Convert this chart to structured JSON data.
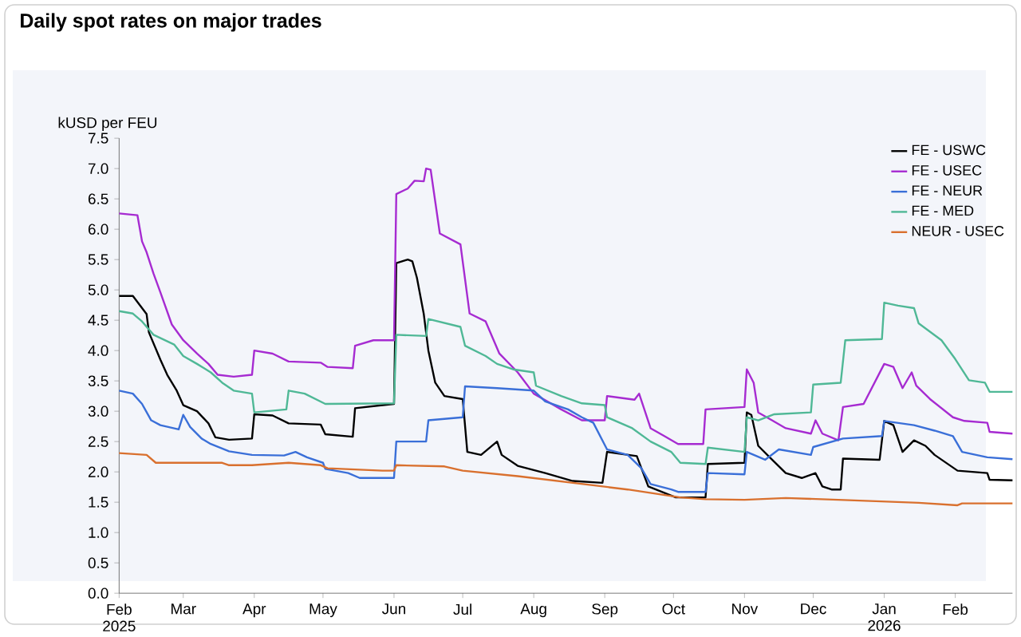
{
  "chart_data": {
    "type": "line",
    "title": "Daily spot rates on major trades",
    "ylabel": "kUSD per FEU",
    "xlim": [
      "2025-02-01",
      "2026-02-26"
    ],
    "ylim": [
      0,
      7.5
    ],
    "xticks": [
      {
        "value": "2025-02-01",
        "label": "Feb 2025"
      },
      {
        "value": "2025-03-01",
        "label": "Mar"
      },
      {
        "value": "2025-04-01",
        "label": "Apr"
      },
      {
        "value": "2025-05-01",
        "label": "May"
      },
      {
        "value": "2025-06-01",
        "label": "Jun"
      },
      {
        "value": "2025-07-01",
        "label": "Jul"
      },
      {
        "value": "2025-08-01",
        "label": "Aug"
      },
      {
        "value": "2025-09-01",
        "label": "Sep"
      },
      {
        "value": "2025-10-01",
        "label": "Oct"
      },
      {
        "value": "2025-11-01",
        "label": "Nov"
      },
      {
        "value": "2025-12-01",
        "label": "Dec"
      },
      {
        "value": "2026-01-01",
        "label": "Jan 2026"
      },
      {
        "value": "2026-02-01",
        "label": "Feb"
      }
    ],
    "yticks": [
      {
        "value": 0,
        "label": "0.0"
      },
      0.5,
      {
        "value": 1,
        "label": "1.0"
      },
      1.5,
      {
        "value": 2,
        "label": "2.0"
      },
      2.5,
      {
        "value": 3,
        "label": "3.0"
      },
      3.5,
      {
        "value": 4,
        "label": "4.0"
      },
      4.5,
      {
        "value": 5,
        "label": "5.0"
      },
      5.5,
      {
        "value": 6,
        "label": "6.0"
      },
      6.5,
      {
        "value": 7,
        "label": "7.0"
      },
      7.5
    ],
    "grid": false,
    "legend": "top right",
    "series": [
      {
        "name": "FE - USWC",
        "color": "#000000",
        "x": [
          "2025-02-01",
          "2025-02-07",
          "2025-02-10",
          "2025-02-13",
          "2025-02-14",
          "2025-02-19",
          "2025-02-22",
          "2025-02-26",
          "2025-03-01",
          "2025-03-07",
          "2025-03-12",
          "2025-03-15",
          "2025-03-21",
          "2025-03-31",
          "2025-04-01",
          "2025-04-09",
          "2025-04-16",
          "2025-04-30",
          "2025-05-02",
          "2025-05-14",
          "2025-05-15",
          "2025-06-01",
          "2025-06-02",
          "2025-06-07",
          "2025-06-09",
          "2025-06-11",
          "2025-06-14",
          "2025-06-16",
          "2025-06-19",
          "2025-06-23",
          "2025-07-01",
          "2025-07-03",
          "2025-07-09",
          "2025-07-16",
          "2025-07-18",
          "2025-07-25",
          "2025-08-06",
          "2025-08-18",
          "2025-08-31",
          "2025-09-02",
          "2025-09-15",
          "2025-09-20",
          "2025-10-02",
          "2025-10-15",
          "2025-10-16",
          "2025-11-01",
          "2025-11-02",
          "2025-11-04",
          "2025-11-07",
          "2025-11-12",
          "2025-11-19",
          "2025-11-26",
          "2025-12-02",
          "2025-12-05",
          "2025-12-09",
          "2025-12-13",
          "2025-12-14",
          "2025-12-30",
          "2026-01-01",
          "2026-01-05",
          "2026-01-09",
          "2026-01-14",
          "2026-01-19",
          "2026-01-23",
          "2026-02-02",
          "2026-02-15",
          "2026-02-16",
          "2026-02-26"
        ],
        "values": [
          4.9,
          4.9,
          4.75,
          4.6,
          4.3,
          3.85,
          3.6,
          3.35,
          3.1,
          3.0,
          2.8,
          2.57,
          2.53,
          2.55,
          2.95,
          2.93,
          2.8,
          2.78,
          2.62,
          2.58,
          3.05,
          3.12,
          5.44,
          5.5,
          5.47,
          5.2,
          4.6,
          4.0,
          3.47,
          3.25,
          3.2,
          2.33,
          2.28,
          2.5,
          2.28,
          2.1,
          1.98,
          1.85,
          1.82,
          2.33,
          2.26,
          1.76,
          1.58,
          1.58,
          2.13,
          2.15,
          2.98,
          2.94,
          2.43,
          2.24,
          1.98,
          1.9,
          1.98,
          1.76,
          1.71,
          1.71,
          2.22,
          2.2,
          2.84,
          2.77,
          2.33,
          2.52,
          2.43,
          2.28,
          2.02,
          1.98,
          1.87,
          1.86
        ]
      },
      {
        "name": "FE - USEC",
        "color": "#a62bd1",
        "x": [
          "2025-02-01",
          "2025-02-09",
          "2025-02-11",
          "2025-02-13",
          "2025-02-16",
          "2025-02-19",
          "2025-02-24",
          "2025-03-01",
          "2025-03-07",
          "2025-03-12",
          "2025-03-16",
          "2025-03-23",
          "2025-03-31",
          "2025-04-01",
          "2025-04-09",
          "2025-04-16",
          "2025-04-30",
          "2025-05-03",
          "2025-05-14",
          "2025-05-15",
          "2025-05-23",
          "2025-06-01",
          "2025-06-02",
          "2025-06-07",
          "2025-06-10",
          "2025-06-14",
          "2025-06-15",
          "2025-06-17",
          "2025-06-21",
          "2025-06-30",
          "2025-07-04",
          "2025-07-11",
          "2025-07-17",
          "2025-07-25",
          "2025-08-01",
          "2025-08-13",
          "2025-08-22",
          "2025-09-01",
          "2025-09-02",
          "2025-09-14",
          "2025-09-16",
          "2025-09-21",
          "2025-09-27",
          "2025-10-03",
          "2025-10-14",
          "2025-10-15",
          "2025-11-01",
          "2025-11-02",
          "2025-11-05",
          "2025-11-07",
          "2025-11-13",
          "2025-11-19",
          "2025-11-30",
          "2025-12-02",
          "2025-12-05",
          "2025-12-12",
          "2025-12-14",
          "2025-12-23",
          "2026-01-01",
          "2026-01-05",
          "2026-01-09",
          "2026-01-13",
          "2026-01-15",
          "2026-01-21",
          "2026-01-31",
          "2026-02-05",
          "2026-02-15",
          "2026-02-16",
          "2026-02-26"
        ],
        "values": [
          6.26,
          6.23,
          5.8,
          5.62,
          5.27,
          4.96,
          4.43,
          4.17,
          3.95,
          3.78,
          3.6,
          3.57,
          3.6,
          4.0,
          3.95,
          3.82,
          3.8,
          3.73,
          3.71,
          4.08,
          4.17,
          4.17,
          6.58,
          6.67,
          6.8,
          6.79,
          7.0,
          6.98,
          5.93,
          5.75,
          4.61,
          4.48,
          3.95,
          3.64,
          3.29,
          3.03,
          2.85,
          2.85,
          3.25,
          3.19,
          3.29,
          2.72,
          2.59,
          2.46,
          2.46,
          3.03,
          3.07,
          3.69,
          3.47,
          2.98,
          2.85,
          2.72,
          2.63,
          2.85,
          2.63,
          2.52,
          3.07,
          3.12,
          3.78,
          3.73,
          3.38,
          3.64,
          3.42,
          3.2,
          2.9,
          2.84,
          2.81,
          2.66,
          2.63
        ]
      },
      {
        "name": "FE - NEUR",
        "color": "#3a6fd8",
        "x": [
          "2025-02-01",
          "2025-02-07",
          "2025-02-11",
          "2025-02-15",
          "2025-02-19",
          "2025-02-27",
          "2025-03-01",
          "2025-03-04",
          "2025-03-09",
          "2025-03-13",
          "2025-03-21",
          "2025-03-31",
          "2025-04-14",
          "2025-04-19",
          "2025-04-24",
          "2025-05-01",
          "2025-05-02",
          "2025-05-12",
          "2025-05-17",
          "2025-06-01",
          "2025-06-02",
          "2025-06-15",
          "2025-06-16",
          "2025-07-01",
          "2025-07-02",
          "2025-07-16",
          "2025-08-01",
          "2025-08-06",
          "2025-08-16",
          "2025-08-22",
          "2025-08-27",
          "2025-09-02",
          "2025-09-11",
          "2025-09-17",
          "2025-09-21",
          "2025-09-30",
          "2025-10-03",
          "2025-10-15",
          "2025-10-16",
          "2025-11-01",
          "2025-11-02",
          "2025-11-10",
          "2025-11-16",
          "2025-11-30",
          "2025-12-01",
          "2025-12-14",
          "2025-12-31",
          "2026-01-01",
          "2026-01-14",
          "2026-01-23",
          "2026-01-31",
          "2026-02-04",
          "2026-02-15",
          "2026-02-26"
        ],
        "values": [
          3.34,
          3.29,
          3.12,
          2.85,
          2.77,
          2.7,
          2.94,
          2.74,
          2.55,
          2.46,
          2.34,
          2.28,
          2.27,
          2.33,
          2.24,
          2.15,
          2.05,
          1.98,
          1.9,
          1.9,
          2.5,
          2.5,
          2.85,
          2.9,
          3.41,
          3.38,
          3.34,
          3.16,
          3.03,
          2.9,
          2.81,
          2.37,
          2.28,
          2.06,
          1.8,
          1.71,
          1.67,
          1.67,
          1.98,
          1.96,
          2.33,
          2.2,
          2.37,
          2.28,
          2.41,
          2.55,
          2.59,
          2.84,
          2.77,
          2.68,
          2.59,
          2.33,
          2.24,
          2.21
        ]
      },
      {
        "name": "FE - MED",
        "color": "#4fb896",
        "x": [
          "2025-02-01",
          "2025-02-07",
          "2025-02-11",
          "2025-02-16",
          "2025-02-25",
          "2025-03-01",
          "2025-03-07",
          "2025-03-13",
          "2025-03-18",
          "2025-03-23",
          "2025-03-31",
          "2025-04-01",
          "2025-04-15",
          "2025-04-16",
          "2025-04-23",
          "2025-05-02",
          "2025-06-01",
          "2025-06-02",
          "2025-06-15",
          "2025-06-16",
          "2025-06-30",
          "2025-07-02",
          "2025-07-11",
          "2025-07-16",
          "2025-07-23",
          "2025-08-01",
          "2025-08-02",
          "2025-08-13",
          "2025-08-22",
          "2025-09-01",
          "2025-09-02",
          "2025-09-13",
          "2025-09-21",
          "2025-09-30",
          "2025-10-04",
          "2025-10-15",
          "2025-10-16",
          "2025-11-01",
          "2025-11-02",
          "2025-11-07",
          "2025-11-14",
          "2025-11-30",
          "2025-12-01",
          "2025-12-13",
          "2025-12-15",
          "2025-12-31",
          "2026-01-01",
          "2026-01-07",
          "2026-01-14",
          "2026-01-16",
          "2026-01-26",
          "2026-02-01",
          "2026-02-07",
          "2026-02-14",
          "2026-02-16",
          "2026-02-26"
        ],
        "values": [
          4.65,
          4.61,
          4.48,
          4.26,
          4.1,
          3.91,
          3.78,
          3.64,
          3.47,
          3.34,
          3.29,
          2.98,
          3.03,
          3.34,
          3.29,
          3.12,
          3.13,
          4.26,
          4.24,
          4.52,
          4.39,
          4.08,
          3.91,
          3.78,
          3.69,
          3.64,
          3.42,
          3.25,
          3.13,
          3.1,
          2.9,
          2.72,
          2.5,
          2.33,
          2.15,
          2.13,
          2.4,
          2.33,
          2.9,
          2.85,
          2.95,
          2.98,
          3.44,
          3.47,
          4.17,
          4.19,
          4.79,
          4.74,
          4.7,
          4.45,
          4.17,
          3.86,
          3.51,
          3.47,
          3.32,
          3.32
        ]
      },
      {
        "name": "NEUR - USEC",
        "color": "#d9702e",
        "x": [
          "2025-02-01",
          "2025-02-13",
          "2025-02-17",
          "2025-03-18",
          "2025-03-21",
          "2025-03-31",
          "2025-04-16",
          "2025-04-30",
          "2025-05-03",
          "2025-05-27",
          "2025-06-01",
          "2025-06-02",
          "2025-06-23",
          "2025-07-01",
          "2025-07-25",
          "2025-08-18",
          "2025-09-11",
          "2025-10-04",
          "2025-10-15",
          "2025-11-01",
          "2025-11-19",
          "2025-12-12",
          "2026-01-16",
          "2026-02-02",
          "2026-02-04",
          "2026-02-26"
        ],
        "values": [
          2.31,
          2.28,
          2.15,
          2.15,
          2.11,
          2.11,
          2.15,
          2.11,
          2.06,
          2.02,
          2.02,
          2.11,
          2.09,
          2.02,
          1.93,
          1.82,
          1.71,
          1.58,
          1.55,
          1.54,
          1.57,
          1.54,
          1.49,
          1.45,
          1.48,
          1.48
        ]
      }
    ]
  }
}
